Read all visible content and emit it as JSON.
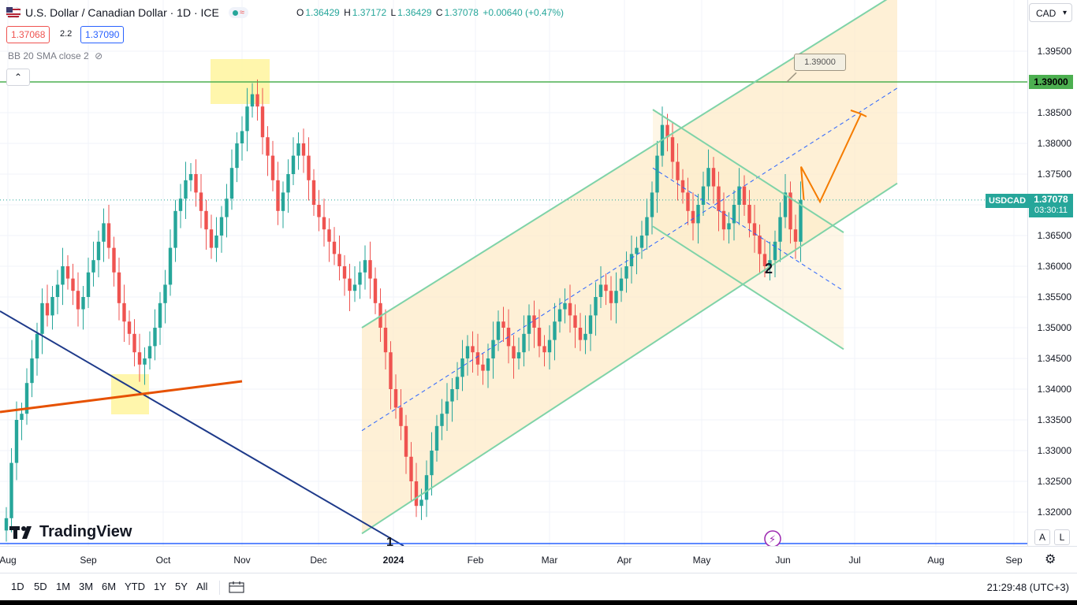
{
  "header": {
    "title": "U.S. Dollar / Canadian Dollar · 1D · ICE",
    "ohlc": {
      "o_label": "O",
      "o": "1.36429",
      "h_label": "H",
      "h": "1.37172",
      "l_label": "L",
      "l": "1.36429",
      "c_label": "C",
      "c": "1.37078",
      "change": "+0.00640 (+0.47%)"
    },
    "sell_price": "1.37068",
    "spread": "2.2",
    "buy_price": "1.37090",
    "indicator": "BB 20 SMA close 2",
    "currency": "CAD"
  },
  "price_tags": {
    "level_label": "1.39000",
    "symbol": "USDCAD",
    "last_price": "1.37078",
    "countdown": "03:30:11",
    "callout": "1.39000"
  },
  "annotations": {
    "wave1": "1",
    "wave2": "2"
  },
  "branding": {
    "logo": "TradingView"
  },
  "scale_buttons": {
    "auto": "A",
    "log": "L"
  },
  "ranges": [
    "1D",
    "5D",
    "1M",
    "3M",
    "6M",
    "YTD",
    "1Y",
    "5Y",
    "All"
  ],
  "clock": "21:29:48 (UTC+3)",
  "colors": {
    "up": "#26a69a",
    "down": "#ef5350",
    "channel": "#7fd3a8",
    "level": "#4caf50",
    "forecast": "#f57c00"
  },
  "chart_data": {
    "type": "candlestick",
    "title": "U.S. Dollar / Canadian Dollar · 1D · ICE",
    "ylim": [
      1.3155,
      1.4045
    ],
    "yticks": [
      "1.39500",
      "1.39000",
      "1.38500",
      "1.38000",
      "1.37500",
      "1.37000",
      "1.36500",
      "1.36000",
      "1.35500",
      "1.35000",
      "1.34500",
      "1.34000",
      "1.33500",
      "1.33000",
      "1.32500",
      "1.32000"
    ],
    "xtick_labels": [
      "Aug",
      "Sep",
      "Oct",
      "Nov",
      "Dec",
      "2024",
      "Feb",
      "Mar",
      "Apr",
      "May",
      "Jun",
      "Jul",
      "Aug",
      "Sep"
    ],
    "horizontal_level": 1.39,
    "closes": [
      1.319,
      1.328,
      1.335,
      1.336,
      1.341,
      1.345,
      1.349,
      1.354,
      1.352,
      1.355,
      1.357,
      1.36,
      1.358,
      1.356,
      1.353,
      1.355,
      1.359,
      1.361,
      1.364,
      1.367,
      1.363,
      1.359,
      1.354,
      1.351,
      1.349,
      1.346,
      1.344,
      1.345,
      1.347,
      1.35,
      1.354,
      1.357,
      1.363,
      1.369,
      1.371,
      1.374,
      1.375,
      1.372,
      1.369,
      1.366,
      1.363,
      1.365,
      1.368,
      1.371,
      1.376,
      1.38,
      1.382,
      1.386,
      1.388,
      1.386,
      1.381,
      1.378,
      1.374,
      1.369,
      1.372,
      1.375,
      1.378,
      1.38,
      1.378,
      1.374,
      1.37,
      1.368,
      1.366,
      1.364,
      1.362,
      1.36,
      1.358,
      1.356,
      1.357,
      1.359,
      1.361,
      1.358,
      1.354,
      1.35,
      1.346,
      1.34,
      1.337,
      1.334,
      1.329,
      1.325,
      1.321,
      1.322,
      1.326,
      1.33,
      1.334,
      1.336,
      1.338,
      1.34,
      1.342,
      1.345,
      1.347,
      1.346,
      1.344,
      1.343,
      1.345,
      1.348,
      1.351,
      1.35,
      1.347,
      1.345,
      1.346,
      1.349,
      1.352,
      1.35,
      1.347,
      1.346,
      1.348,
      1.351,
      1.353,
      1.354,
      1.352,
      1.35,
      1.348,
      1.349,
      1.352,
      1.355,
      1.357,
      1.356,
      1.354,
      1.356,
      1.358,
      1.36,
      1.362,
      1.363,
      1.365,
      1.368,
      1.372,
      1.378,
      1.383,
      1.381,
      1.377,
      1.374,
      1.372,
      1.369,
      1.367,
      1.37,
      1.373,
      1.376,
      1.373,
      1.369,
      1.366,
      1.367,
      1.37,
      1.373,
      1.37,
      1.367,
      1.365,
      1.362,
      1.36,
      1.361,
      1.364,
      1.368,
      1.372,
      1.366,
      1.364,
      1.3708
    ],
    "forecast_path": [
      1.3708,
      1.3762,
      1.3705,
      1.3848
    ],
    "channel_rising": {
      "lower": [
        1.3165,
        1.3735
      ],
      "upper": [
        1.35,
        1.4045
      ]
    },
    "channel_falling": {
      "upper": [
        1.3855,
        1.3655
      ],
      "lower": [
        1.3665,
        1.3465
      ]
    }
  }
}
